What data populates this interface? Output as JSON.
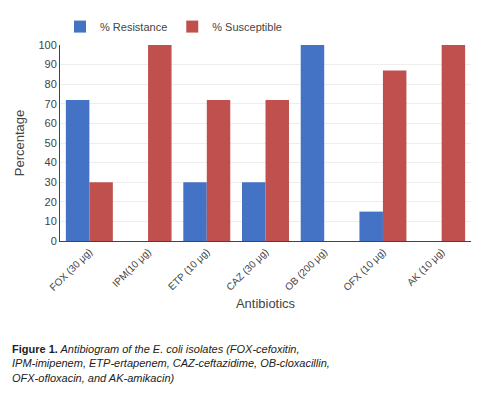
{
  "chart_data": {
    "type": "bar",
    "categories": [
      "FOX (30 μg)",
      "IPM(10 μg)",
      "ETP (10 μg)",
      "CAZ (30 μg)",
      "OB (200 μg)",
      "OFX (10 μg)",
      "AK (10 μg)"
    ],
    "series": [
      {
        "name": "% Resistance",
        "color": "#4472C4",
        "values": [
          72,
          0,
          30,
          30,
          100,
          15,
          0
        ]
      },
      {
        "name": "% Susceptible",
        "color": "#C0504D",
        "values": [
          30,
          100,
          72,
          72,
          0,
          87,
          100
        ]
      }
    ],
    "xlabel": "Antibiotics",
    "ylabel": "Percentage",
    "ylim": [
      0,
      100
    ],
    "yticks": [
      0,
      10,
      20,
      30,
      40,
      50,
      60,
      70,
      80,
      90,
      100
    ],
    "grid": true,
    "legend": "top",
    "annotations": [
      "Figure 1. Antibiogram of the E. coli isolates (FOX-cefoxitin, IPM-imipenem, ETP-ertapenem, CAZ-ceftazidime, OB-cloxacillin, OFX-ofloxacin, and AK-amikacin)"
    ]
  }
}
